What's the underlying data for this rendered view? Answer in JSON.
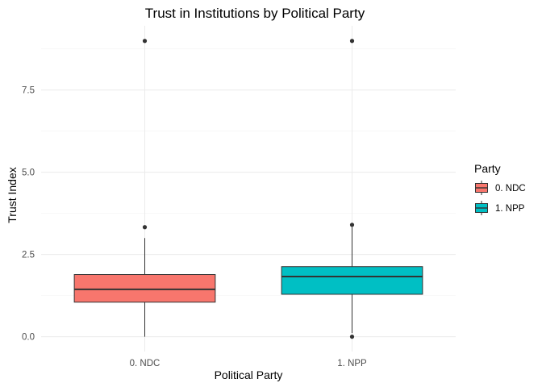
{
  "chart_data": {
    "type": "box",
    "title": "Trust in Institutions by Political Party",
    "xlabel": "Political Party",
    "ylabel": "Trust Index",
    "categories": [
      "0. NDC",
      "1. NPP"
    ],
    "yticks": [
      "0.0",
      "2.5",
      "5.0",
      "7.5"
    ],
    "ytick_values": [
      0,
      2.5,
      5,
      7.5
    ],
    "ylim": [
      -0.45,
      9.45
    ],
    "grid": true,
    "legend": {
      "title": "Party",
      "position": "right",
      "entries": [
        "0. NDC",
        "1. NPP"
      ]
    },
    "series": [
      {
        "category": "0. NDC",
        "color": "#F8766D",
        "whisker_low": 0.0,
        "q1": 1.05,
        "median": 1.44,
        "q3": 1.89,
        "whisker_high": 3.0,
        "outliers": [
          3.33,
          8.99
        ]
      },
      {
        "category": "1. NPP",
        "color": "#00BFC4",
        "whisker_low": 0.11,
        "q1": 1.29,
        "median": 1.83,
        "q3": 2.13,
        "whisker_high": 3.33,
        "outliers": [
          0.0,
          3.4,
          8.99
        ]
      }
    ]
  }
}
